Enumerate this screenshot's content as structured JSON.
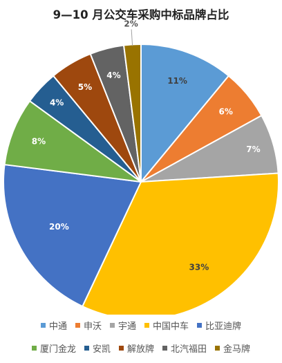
{
  "chart_data": {
    "type": "pie",
    "title": "9—10 月公交车采购中标品牌占比",
    "categories": [
      "中通",
      "申沃",
      "宇通",
      "中国中车",
      "比亚迪牌",
      "厦门金龙",
      "安凯",
      "解放牌",
      "北汽福田",
      "金马牌"
    ],
    "values": [
      11,
      6,
      7,
      33,
      20,
      8,
      4,
      5,
      4,
      2
    ],
    "labels": [
      "11%",
      "6%",
      "7%",
      "33%",
      "20%",
      "8%",
      "4%",
      "5%",
      "4%",
      "2%"
    ],
    "colors": [
      "#5b9bd5",
      "#ed7d31",
      "#a5a5a5",
      "#ffc000",
      "#4472c4",
      "#70ad47",
      "#255e91",
      "#9e480e",
      "#636363",
      "#997300"
    ],
    "legend_position": "bottom"
  }
}
